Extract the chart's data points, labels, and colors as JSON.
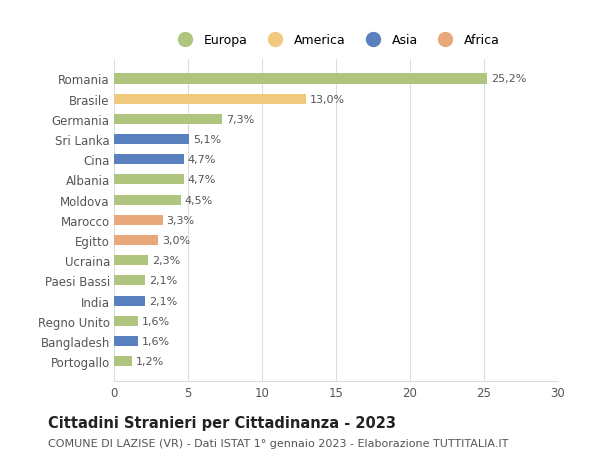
{
  "categories": [
    "Portogallo",
    "Bangladesh",
    "Regno Unito",
    "India",
    "Paesi Bassi",
    "Ucraina",
    "Egitto",
    "Marocco",
    "Moldova",
    "Albania",
    "Cina",
    "Sri Lanka",
    "Germania",
    "Brasile",
    "Romania"
  ],
  "values": [
    1.2,
    1.6,
    1.6,
    2.1,
    2.1,
    2.3,
    3.0,
    3.3,
    4.5,
    4.7,
    4.7,
    5.1,
    7.3,
    13.0,
    25.2
  ],
  "labels": [
    "1,2%",
    "1,6%",
    "1,6%",
    "2,1%",
    "2,1%",
    "2,3%",
    "3,0%",
    "3,3%",
    "4,5%",
    "4,7%",
    "4,7%",
    "5,1%",
    "7,3%",
    "13,0%",
    "25,2%"
  ],
  "colors": [
    "#aec47f",
    "#5b80bf",
    "#aec47f",
    "#5b80bf",
    "#aec47f",
    "#aec47f",
    "#e8a87c",
    "#e8a87c",
    "#aec47f",
    "#aec47f",
    "#5b80bf",
    "#5b80bf",
    "#aec47f",
    "#f0c97f",
    "#aec47f"
  ],
  "continent_colors": {
    "Europa": "#aec47f",
    "America": "#f0c97f",
    "Asia": "#5b80bf",
    "Africa": "#e8a87c"
  },
  "xlim": [
    0,
    30
  ],
  "xticks": [
    0,
    5,
    10,
    15,
    20,
    25,
    30
  ],
  "title": "Cittadini Stranieri per Cittadinanza - 2023",
  "subtitle": "COMUNE DI LAZISE (VR) - Dati ISTAT 1° gennaio 2023 - Elaborazione TUTTITALIA.IT",
  "bar_height": 0.5,
  "background_color": "#ffffff",
  "grid_color": "#dddddd",
  "text_color": "#555555",
  "title_fontsize": 10.5,
  "subtitle_fontsize": 8,
  "label_fontsize": 8,
  "tick_fontsize": 8.5
}
